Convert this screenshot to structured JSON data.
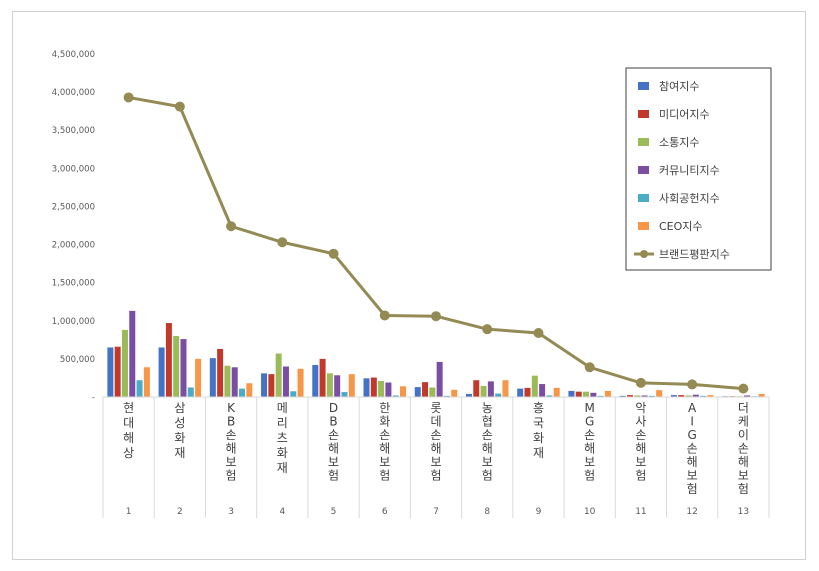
{
  "chart_data": {
    "type": "bar",
    "title": "",
    "xlabel": "",
    "ylabel": "",
    "ylim": [
      0,
      4500000
    ],
    "y_ticks": [
      "-",
      "500,000",
      "1,000,000",
      "1,500,000",
      "2,000,000",
      "2,500,000",
      "3,000,000",
      "3,500,000",
      "4,000,000",
      "4,500,000"
    ],
    "categories": [
      "현대해상",
      "삼성화재",
      "KB손해보험",
      "메리츠화재",
      "DB손해보험",
      "한화손해보험",
      "롯데손해보험",
      "농협손해보험",
      "흥국화재",
      "MG손해보험",
      "악사손해보험",
      "AIG손해보험",
      "더케이손해보험"
    ],
    "ranks": [
      "1",
      "2",
      "3",
      "4",
      "5",
      "6",
      "7",
      "8",
      "9",
      "10",
      "11",
      "12",
      "13"
    ],
    "grid": false,
    "legend_position": "top-right",
    "series": [
      {
        "name": "참여지수",
        "type": "bar",
        "color": "#4472c4",
        "values": [
          650000,
          650000,
          510000,
          310000,
          420000,
          245000,
          130000,
          40000,
          110000,
          80000,
          15000,
          25000,
          10000
        ]
      },
      {
        "name": "미디어지수",
        "type": "bar",
        "color": "#c0392b",
        "values": [
          660000,
          970000,
          630000,
          300000,
          500000,
          255000,
          195000,
          220000,
          120000,
          70000,
          25000,
          25000,
          10000
        ]
      },
      {
        "name": "소통지수",
        "type": "bar",
        "color": "#9bbb59",
        "values": [
          880000,
          800000,
          410000,
          570000,
          310000,
          210000,
          125000,
          145000,
          280000,
          70000,
          20000,
          20000,
          10000
        ]
      },
      {
        "name": "커뮤니티지수",
        "type": "bar",
        "color": "#7b4ea3",
        "values": [
          1130000,
          760000,
          390000,
          400000,
          285000,
          190000,
          460000,
          205000,
          170000,
          55000,
          20000,
          30000,
          20000
        ]
      },
      {
        "name": "사회공헌지수",
        "type": "bar",
        "color": "#4bacc6",
        "values": [
          220000,
          125000,
          110000,
          75000,
          65000,
          20000,
          15000,
          45000,
          20000,
          15000,
          15000,
          15000,
          10000
        ]
      },
      {
        "name": "CEO지수",
        "type": "bar",
        "color": "#f79646",
        "values": [
          390000,
          500000,
          180000,
          370000,
          300000,
          140000,
          95000,
          220000,
          120000,
          80000,
          90000,
          25000,
          40000
        ]
      },
      {
        "name": "브랜드평판지수",
        "type": "line",
        "color": "#948a54",
        "values": [
          3930000,
          3810000,
          2240000,
          2030000,
          1880000,
          1070000,
          1060000,
          890000,
          840000,
          390000,
          185000,
          165000,
          110000
        ]
      }
    ]
  }
}
